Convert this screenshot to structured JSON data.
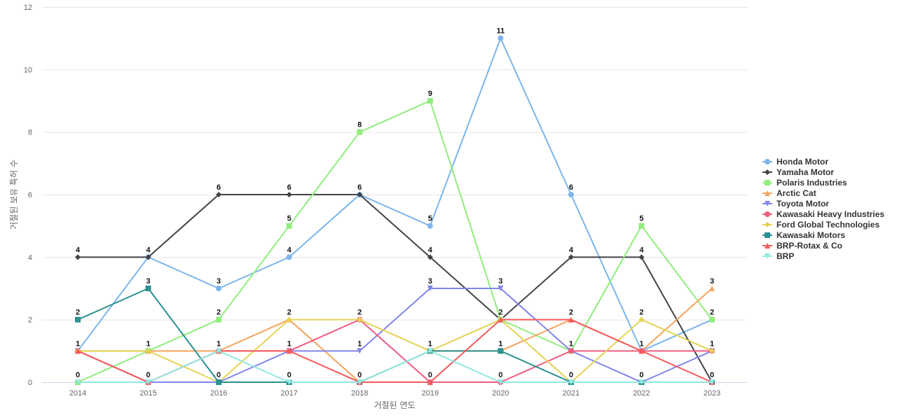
{
  "chart_data": {
    "type": "line",
    "xlabel": "거절된 연도",
    "ylabel": "거절된 보유 특허 수",
    "ylim": [
      0,
      12
    ],
    "yticks": [
      0,
      2,
      4,
      6,
      8,
      10,
      12
    ],
    "categories": [
      "2014",
      "2015",
      "2016",
      "2017",
      "2018",
      "2019",
      "2020",
      "2021",
      "2022",
      "2023"
    ],
    "grid": true,
    "legend_position": "right",
    "series": [
      {
        "name": "Honda Motor",
        "color": "#7cb5ec",
        "marker": "circle",
        "values": [
          1,
          4,
          3,
          4,
          6,
          5,
          11,
          6,
          1,
          2
        ],
        "labels": true
      },
      {
        "name": "Yamaha Motor",
        "color": "#434348",
        "marker": "diamond",
        "values": [
          4,
          4,
          6,
          6,
          6,
          4,
          2,
          4,
          4,
          0
        ],
        "labels": true
      },
      {
        "name": "Polaris Industries",
        "color": "#90ed7d",
        "marker": "square",
        "values": [
          0,
          1,
          2,
          5,
          8,
          9,
          2,
          1,
          5,
          2
        ],
        "labels": true
      },
      {
        "name": "Arctic Cat",
        "color": "#f7a35c",
        "marker": "triangle",
        "values": [
          1,
          1,
          1,
          2,
          0,
          1,
          1,
          2,
          1,
          3
        ],
        "labels": true
      },
      {
        "name": "Toyota Motor",
        "color": "#8085e9",
        "marker": "triangle-down",
        "values": [
          1,
          0,
          0,
          1,
          1,
          3,
          3,
          1,
          0,
          1
        ],
        "labels": true
      },
      {
        "name": "Kawasaki Heavy Industries",
        "color": "#f15c80",
        "marker": "circle",
        "values": [
          1,
          0,
          1,
          1,
          2,
          0,
          0,
          1,
          1,
          1
        ],
        "labels": false
      },
      {
        "name": "Ford Global Technologies",
        "color": "#e4d354",
        "marker": "diamond",
        "values": [
          1,
          1,
          0,
          2,
          2,
          1,
          2,
          0,
          2,
          1
        ],
        "labels": false
      },
      {
        "name": "Kawasaki Motors",
        "color": "#2b908f",
        "marker": "square",
        "values": [
          2,
          3,
          0,
          0,
          0,
          1,
          1,
          0,
          0,
          0
        ],
        "labels": true
      },
      {
        "name": "BRP-Rotax & Co",
        "color": "#f45b5b",
        "marker": "triangle",
        "values": [
          1,
          0,
          1,
          1,
          0,
          0,
          2,
          2,
          1,
          0
        ],
        "labels": false
      },
      {
        "name": "BRP",
        "color": "#91e8e1",
        "marker": "triangle-down",
        "values": [
          0,
          0,
          1,
          0,
          0,
          1,
          0,
          0,
          0,
          0
        ],
        "labels": false
      }
    ]
  }
}
